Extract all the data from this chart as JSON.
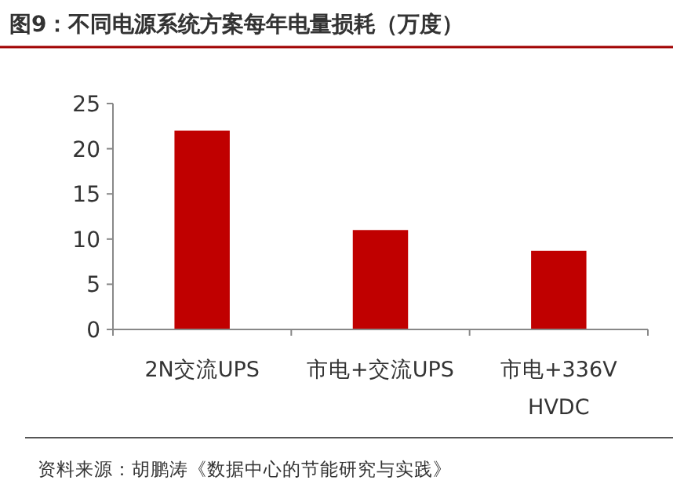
{
  "chart_data": {
    "type": "bar",
    "title": "图9：不同电源系统方案每年电量损耗（万度）",
    "categories": [
      "2N交流UPS",
      "市电+交流UPS",
      "市电+336V\nHVDC"
    ],
    "values": [
      22,
      11,
      8.7
    ],
    "color": "#c00000",
    "ylim": [
      0,
      25
    ],
    "yticks": [
      0,
      5,
      10,
      15,
      20,
      25
    ],
    "grid": false,
    "annotations": [
      "资料来源：胡鹏涛《数据中心的节能研究与实践》"
    ]
  }
}
